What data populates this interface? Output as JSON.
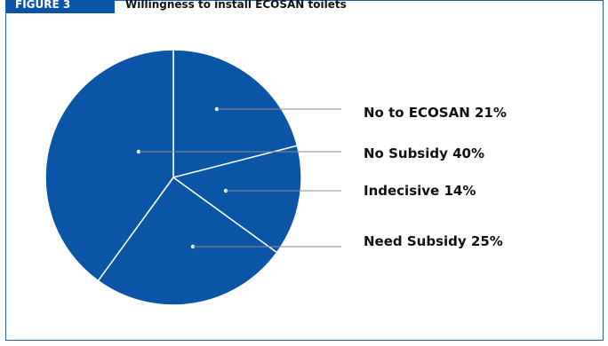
{
  "figure": {
    "tag": "FIGURE 3",
    "title": "Willingness to install ECOSAN toilets"
  },
  "colors": {
    "slice": "#0b55a6",
    "slice_border": "#ffffff",
    "leader": "#8c8c8c",
    "frame": "#1f5ea8"
  },
  "chart_data": {
    "type": "pie",
    "title": "Willingness to install ECOSAN toilets",
    "categories": [
      "No to ECOSAN",
      "Indecisive",
      "Need Subsidy",
      "No Subsidy"
    ],
    "values": [
      21,
      14,
      25,
      40
    ],
    "legend_labels": [
      "No to ECOSAN 21%",
      "No Subsidy 40%",
      "Indecisive 14%",
      "Need Subsidy 25%"
    ],
    "start": "12 o'clock, clockwise",
    "legend_position": "right"
  }
}
